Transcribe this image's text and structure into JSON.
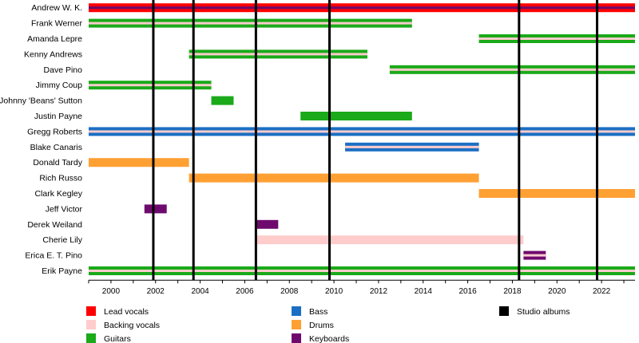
{
  "chart_data": {
    "type": "timeline",
    "xlim": [
      1999,
      2023.5
    ],
    "x_ticks": [
      2000,
      2002,
      2004,
      2006,
      2008,
      2010,
      2012,
      2014,
      2016,
      2018,
      2020,
      2022
    ],
    "grid": false,
    "legend_placement": "bottom",
    "roles": [
      {
        "key": "lead",
        "label": "Lead vocals",
        "color": "#ff0000"
      },
      {
        "key": "backing",
        "label": "Backing vocals",
        "color": "#ffcccc"
      },
      {
        "key": "guitar",
        "label": "Guitars",
        "color": "#1aaa1a"
      },
      {
        "key": "bass",
        "label": "Bass",
        "color": "#1a6fc4"
      },
      {
        "key": "drums",
        "label": "Drums",
        "color": "#ffa033"
      },
      {
        "key": "keys",
        "label": "Keyboards",
        "color": "#6e0a6e"
      },
      {
        "key": "albums",
        "label": "Studio albums",
        "color": "#000000"
      }
    ],
    "albums": [
      2001.9,
      2003.7,
      2006.5,
      2009.8,
      2018.3,
      2021.8
    ],
    "members": [
      {
        "name": "Andrew W. K.",
        "bars": [
          {
            "start": 1999,
            "end": 2023.5,
            "role": "lead",
            "stripe": "keys"
          }
        ]
      },
      {
        "name": "Frank Werner",
        "bars": [
          {
            "start": 1999,
            "end": 2013.5,
            "role": "guitar",
            "stripe": "backing"
          }
        ]
      },
      {
        "name": "Amanda Lepre",
        "bars": [
          {
            "start": 2016.5,
            "end": 2023.5,
            "role": "guitar",
            "stripe": "backing"
          }
        ]
      },
      {
        "name": "Kenny Andrews",
        "bars": [
          {
            "start": 2003.5,
            "end": 2011.5,
            "role": "guitar",
            "stripe": "backing"
          }
        ]
      },
      {
        "name": "Dave Pino",
        "bars": [
          {
            "start": 2012.5,
            "end": 2023.5,
            "role": "guitar",
            "stripe": "backing"
          }
        ]
      },
      {
        "name": "Jimmy Coup",
        "bars": [
          {
            "start": 1999,
            "end": 2004.5,
            "role": "guitar",
            "stripe": "backing"
          }
        ]
      },
      {
        "name": "Johnny 'Beans' Sutton",
        "bars": [
          {
            "start": 2004.5,
            "end": 2005.5,
            "role": "guitar"
          }
        ]
      },
      {
        "name": "Justin Payne",
        "bars": [
          {
            "start": 2008.5,
            "end": 2013.5,
            "role": "guitar"
          }
        ]
      },
      {
        "name": "Gregg Roberts",
        "bars": [
          {
            "start": 1999,
            "end": 2023.5,
            "role": "bass",
            "stripe": "backing"
          }
        ]
      },
      {
        "name": "Blake Canaris",
        "bars": [
          {
            "start": 2010.5,
            "end": 2016.5,
            "role": "bass",
            "stripe": "backing"
          }
        ]
      },
      {
        "name": "Donald Tardy",
        "bars": [
          {
            "start": 1999,
            "end": 2003.5,
            "role": "drums"
          }
        ]
      },
      {
        "name": "Rich Russo",
        "bars": [
          {
            "start": 2003.5,
            "end": 2016.5,
            "role": "drums"
          }
        ]
      },
      {
        "name": "Clark Kegley",
        "bars": [
          {
            "start": 2016.5,
            "end": 2023.5,
            "role": "drums"
          }
        ]
      },
      {
        "name": "Jeff Victor",
        "bars": [
          {
            "start": 2001.5,
            "end": 2002.5,
            "role": "keys"
          }
        ]
      },
      {
        "name": "Derek Weiland",
        "bars": [
          {
            "start": 2006.5,
            "end": 2007.5,
            "role": "keys"
          }
        ]
      },
      {
        "name": "Cherie Lily",
        "bars": [
          {
            "start": 2006.5,
            "end": 2018.5,
            "role": "backing"
          }
        ]
      },
      {
        "name": "Erica E. T. Pino",
        "bars": [
          {
            "start": 2018.5,
            "end": 2019.5,
            "role": "keys",
            "stripe": "backing"
          }
        ]
      },
      {
        "name": "Erik Payne",
        "bars": [
          {
            "start": 1999,
            "end": 2023.5,
            "role": "guitar",
            "stripe": "backing"
          }
        ]
      }
    ]
  }
}
